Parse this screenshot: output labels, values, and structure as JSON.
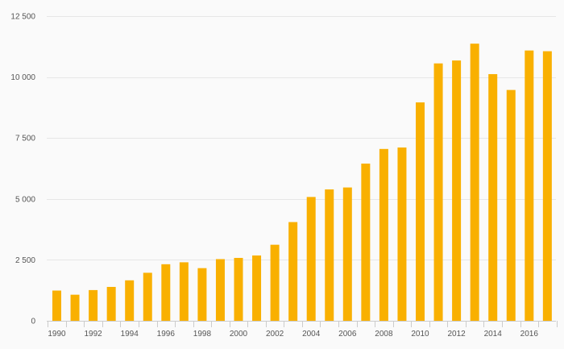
{
  "chart_data": {
    "type": "bar",
    "categories": [
      "1990",
      "1991",
      "1992",
      "1993",
      "1994",
      "1995",
      "1996",
      "1997",
      "1998",
      "1999",
      "2000",
      "2001",
      "2002",
      "2003",
      "2004",
      "2005",
      "2006",
      "2007",
      "2008",
      "2009",
      "2010",
      "2011",
      "2012",
      "2013",
      "2014",
      "2015",
      "2016",
      "2017"
    ],
    "values": [
      1240,
      1070,
      1260,
      1390,
      1660,
      1970,
      2320,
      2400,
      2160,
      2530,
      2580,
      2680,
      3120,
      4050,
      5080,
      5390,
      5470,
      6450,
      7050,
      7110,
      8960,
      10560,
      10680,
      11370,
      10120,
      9470,
      11090,
      11060
    ],
    "x_tick_labels": [
      "1990",
      "1992",
      "1994",
      "1996",
      "1998",
      "2000",
      "2002",
      "2004",
      "2006",
      "2008",
      "2010",
      "2012",
      "2014",
      "2016"
    ],
    "y_ticks": [
      0,
      2500,
      5000,
      7500,
      10000,
      12500
    ],
    "y_tick_labels": [
      "0",
      "2 500",
      "5 000",
      "7 500",
      "10 000",
      "12 500"
    ],
    "ylim": [
      0,
      12500
    ],
    "title": "",
    "xlabel": "",
    "ylabel": "",
    "grid": true,
    "bar_color": "#f9b000",
    "grid_color": "#e6e6e6",
    "axis_color": "#cccccc"
  }
}
